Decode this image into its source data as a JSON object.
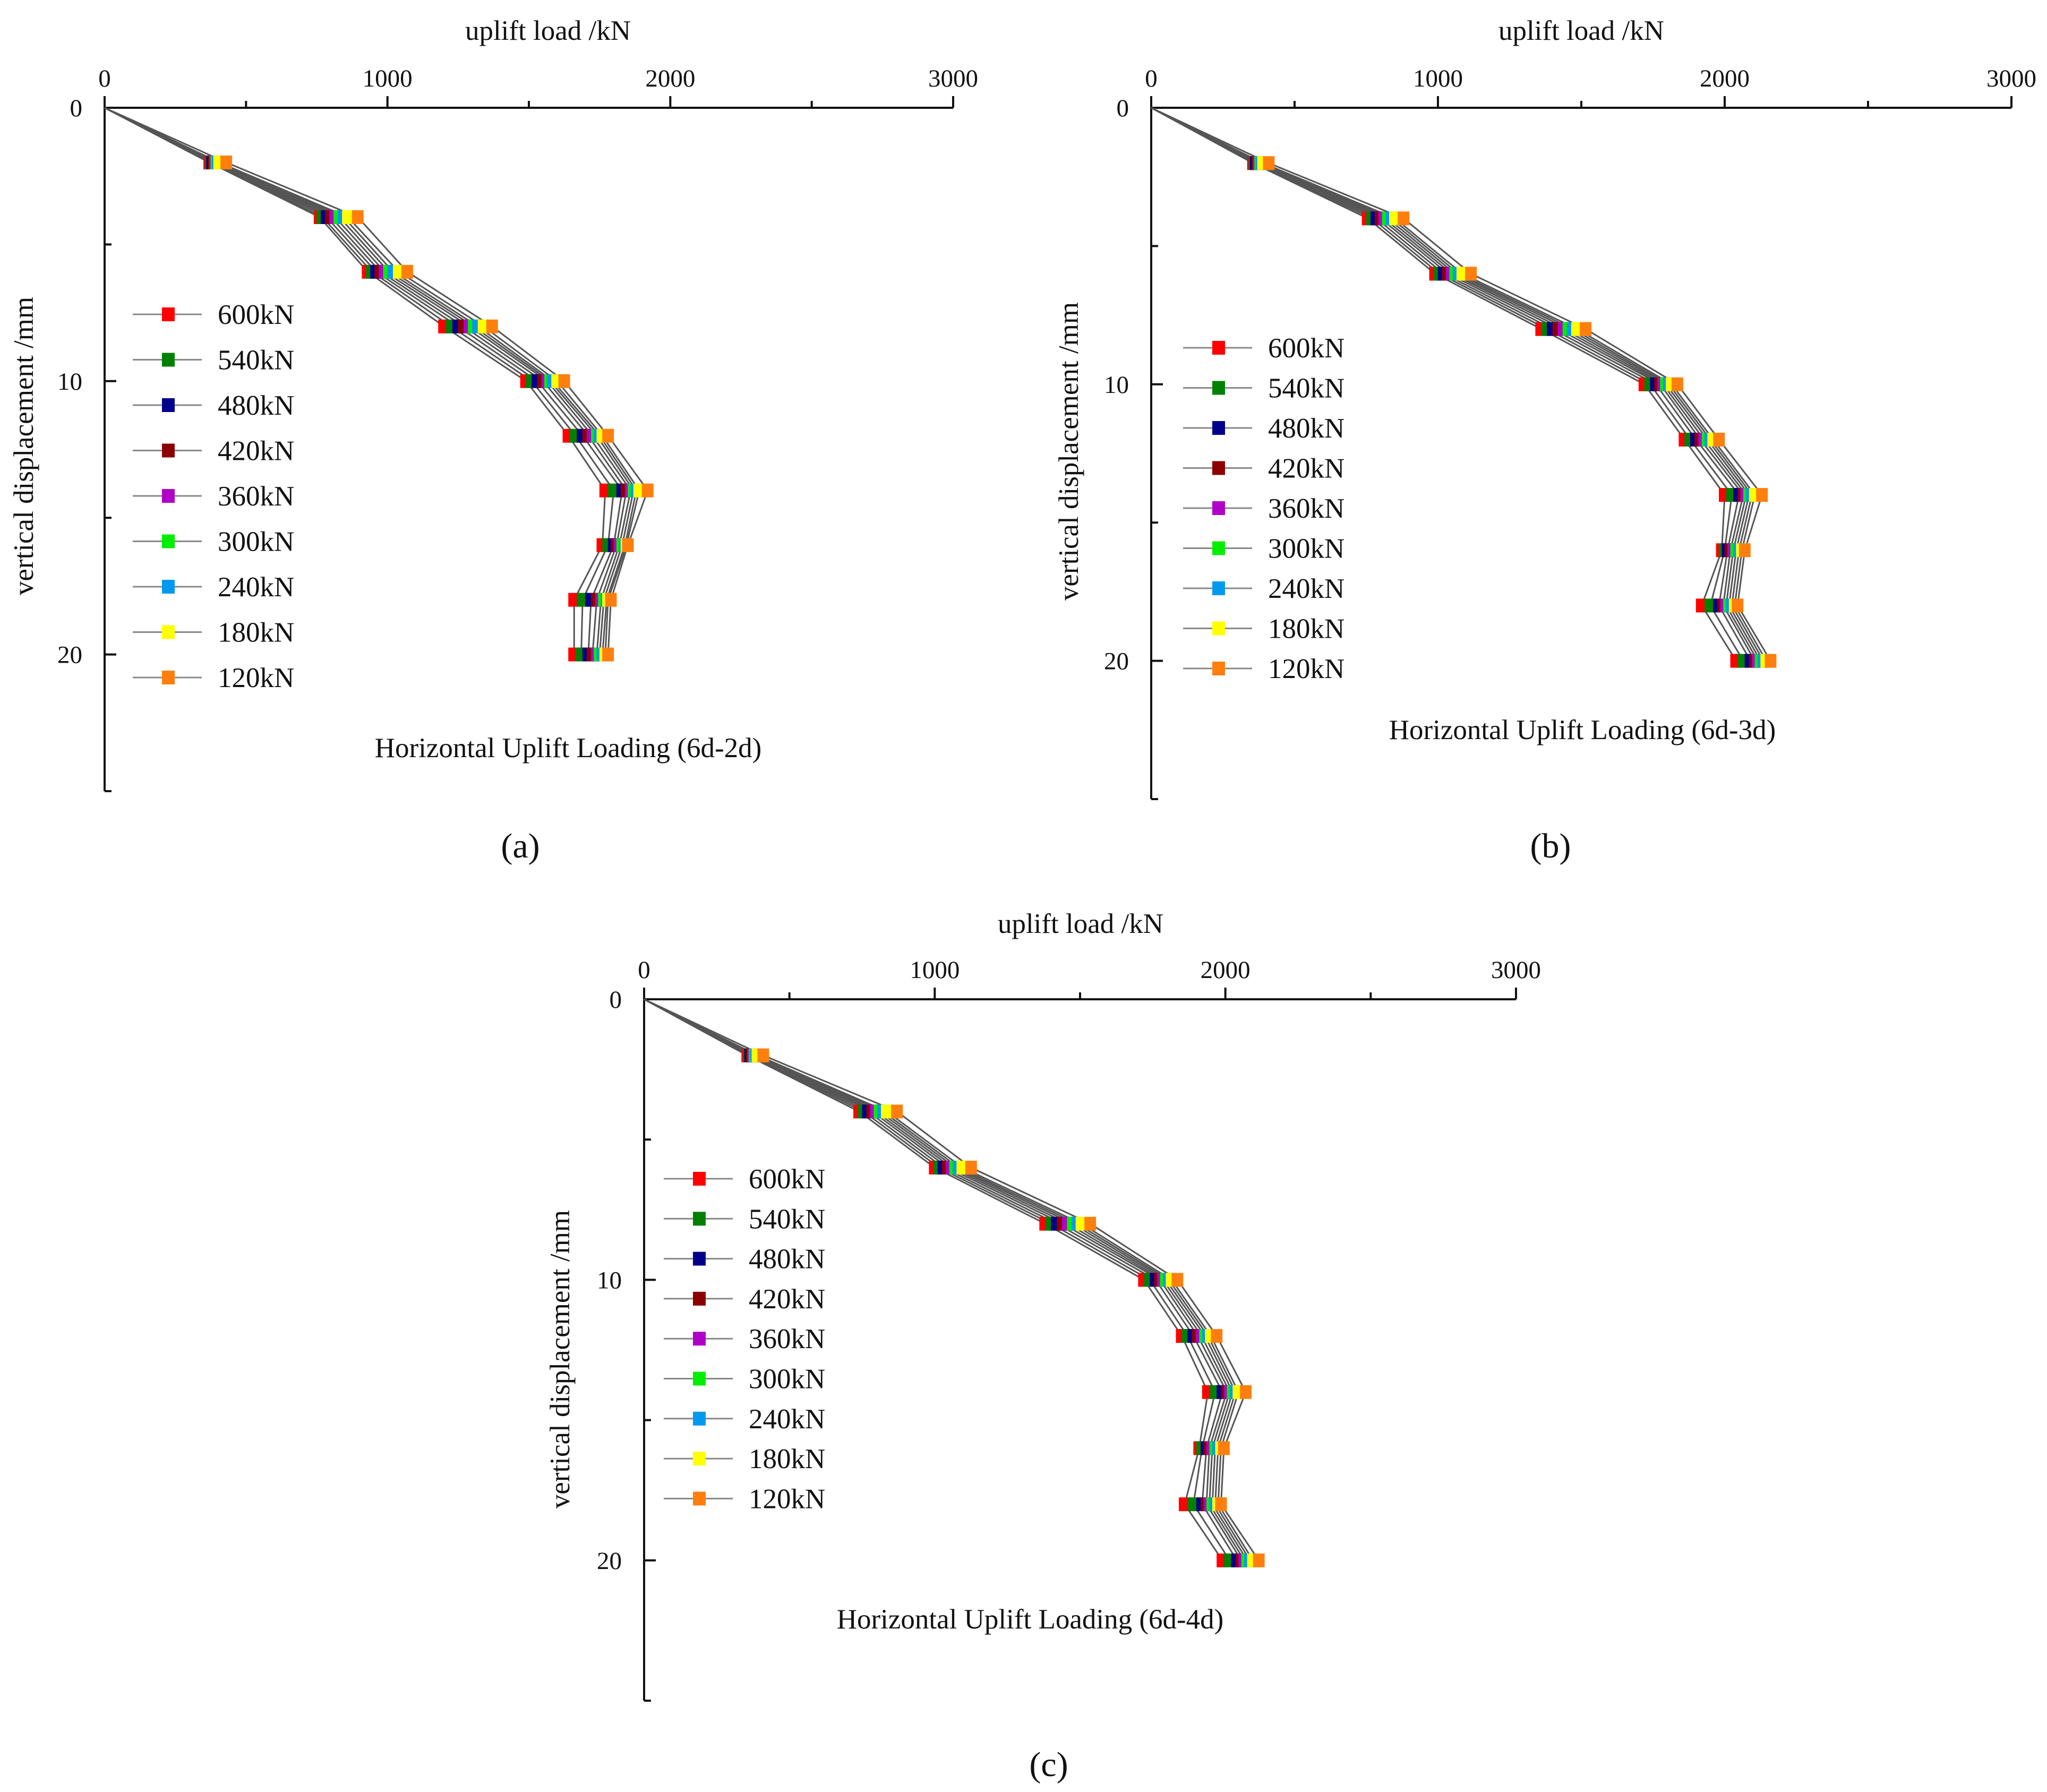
{
  "series_colors": {
    "600kN": "#ff0000",
    "540kN": "#008000",
    "480kN": "#00008b",
    "420kN": "#8b0000",
    "360kN": "#b000c8",
    "300kN": "#00ee00",
    "240kN": "#0099ee",
    "180kN": "#ffff00",
    "120kN": "#ff7f0e"
  },
  "chart_data": [
    {
      "type": "line",
      "title": "Horizontal Uplift Loading (6d-2d)",
      "panel_label": "(a)",
      "xlabel": "uplift load /kN",
      "ylabel": "vertical displacement /mm",
      "xlim": [
        0,
        3000
      ],
      "ylim": [
        0,
        25
      ],
      "x_ticks": [
        "0",
        "1000",
        "2000",
        "3000"
      ],
      "y_ticks": [
        "0",
        "10",
        "20"
      ],
      "legend": [
        "600kN",
        "540kN",
        "480kN",
        "420kN",
        "360kN",
        "300kN",
        "240kN",
        "180kN",
        "120kN"
      ],
      "grid": false,
      "y": [
        0,
        2,
        4,
        6,
        8,
        10,
        12,
        14,
        16,
        18,
        20
      ],
      "series": [
        {
          "name": "600kN",
          "values": [
            0,
            370,
            760,
            930,
            1200,
            1490,
            1640,
            1770,
            1760,
            1660,
            1660
          ]
        },
        {
          "name": "540kN",
          "values": [
            0,
            375,
            770,
            945,
            1225,
            1510,
            1665,
            1800,
            1780,
            1690,
            1685
          ]
        },
        {
          "name": "480kN",
          "values": [
            0,
            380,
            785,
            960,
            1250,
            1530,
            1690,
            1830,
            1800,
            1720,
            1710
          ]
        },
        {
          "name": "420kN",
          "values": [
            0,
            385,
            800,
            975,
            1270,
            1550,
            1710,
            1845,
            1810,
            1740,
            1725
          ]
        },
        {
          "name": "360kN",
          "values": [
            0,
            390,
            815,
            990,
            1290,
            1565,
            1725,
            1860,
            1820,
            1755,
            1740
          ]
        },
        {
          "name": "300kN",
          "values": [
            0,
            395,
            830,
            1005,
            1305,
            1575,
            1740,
            1870,
            1830,
            1765,
            1750
          ]
        },
        {
          "name": "240kN",
          "values": [
            0,
            400,
            845,
            1020,
            1320,
            1585,
            1750,
            1880,
            1840,
            1775,
            1760
          ]
        },
        {
          "name": "180kN",
          "values": [
            0,
            405,
            860,
            1040,
            1340,
            1600,
            1760,
            1890,
            1845,
            1780,
            1770
          ]
        },
        {
          "name": "120kN",
          "values": [
            0,
            430,
            895,
            1070,
            1370,
            1625,
            1780,
            1920,
            1850,
            1790,
            1780
          ]
        }
      ]
    },
    {
      "type": "line",
      "title": "Horizontal Uplift Loading (6d-3d)",
      "panel_label": "(b)",
      "xlabel": "uplift load /kN",
      "ylabel": "vertical displacement /mm",
      "xlim": [
        0,
        3000
      ],
      "ylim": [
        0,
        25
      ],
      "x_ticks": [
        "0",
        "1000",
        "2000",
        "3000"
      ],
      "y_ticks": [
        "0",
        "10",
        "20"
      ],
      "legend": [
        "600kN",
        "540kN",
        "480kN",
        "420kN",
        "360kN",
        "300kN",
        "240kN",
        "180kN",
        "120kN"
      ],
      "grid": false,
      "y": [
        0,
        2,
        4,
        6,
        8,
        10,
        12,
        14,
        16,
        18,
        20
      ],
      "series": [
        {
          "name": "600kN",
          "values": [
            0,
            355,
            755,
            990,
            1360,
            1720,
            1860,
            2000,
            1990,
            1920,
            2040
          ]
        },
        {
          "name": "540kN",
          "values": [
            0,
            360,
            770,
            1005,
            1380,
            1740,
            1880,
            2025,
            2000,
            1950,
            2065
          ]
        },
        {
          "name": "480kN",
          "values": [
            0,
            365,
            785,
            1020,
            1400,
            1760,
            1900,
            2050,
            2010,
            1980,
            2090
          ]
        },
        {
          "name": "420kN",
          "values": [
            0,
            370,
            800,
            1035,
            1420,
            1775,
            1915,
            2065,
            2020,
            1995,
            2105
          ]
        },
        {
          "name": "360kN",
          "values": [
            0,
            375,
            812,
            1048,
            1438,
            1785,
            1928,
            2075,
            2030,
            2005,
            2115
          ]
        },
        {
          "name": "300kN",
          "values": [
            0,
            380,
            825,
            1060,
            1455,
            1795,
            1940,
            2085,
            2040,
            2015,
            2125
          ]
        },
        {
          "name": "240kN",
          "values": [
            0,
            385,
            838,
            1072,
            1470,
            1805,
            1950,
            2095,
            2050,
            2025,
            2135
          ]
        },
        {
          "name": "180kN",
          "values": [
            0,
            390,
            850,
            1085,
            1485,
            1815,
            1960,
            2105,
            2060,
            2035,
            2145
          ]
        },
        {
          "name": "120kN",
          "values": [
            0,
            410,
            880,
            1115,
            1515,
            1835,
            1980,
            2130,
            2070,
            2045,
            2160
          ]
        }
      ]
    },
    {
      "type": "line",
      "title": "Horizontal Uplift Loading (6d-4d)",
      "panel_label": "(c)",
      "xlabel": "uplift load /kN",
      "ylabel": "vertical displacement /mm",
      "xlim": [
        0,
        3000
      ],
      "ylim": [
        0,
        25
      ],
      "x_ticks": [
        "0",
        "1000",
        "2000",
        "3000"
      ],
      "y_ticks": [
        "0",
        "10",
        "20"
      ],
      "legend": [
        "600kN",
        "540kN",
        "480kN",
        "420kN",
        "360kN",
        "300kN",
        "240kN",
        "180kN",
        "120kN"
      ],
      "grid": false,
      "y": [
        0,
        2,
        4,
        6,
        8,
        10,
        12,
        14,
        16,
        18,
        20
      ],
      "series": [
        {
          "name": "600kN",
          "values": [
            0,
            355,
            740,
            1000,
            1380,
            1720,
            1850,
            1940,
            1910,
            1860,
            1990
          ]
        },
        {
          "name": "540kN",
          "values": [
            0,
            360,
            755,
            1015,
            1400,
            1740,
            1870,
            1965,
            1920,
            1890,
            2015
          ]
        },
        {
          "name": "480kN",
          "values": [
            0,
            365,
            770,
            1030,
            1420,
            1760,
            1890,
            1990,
            1935,
            1920,
            2040
          ]
        },
        {
          "name": "420kN",
          "values": [
            0,
            370,
            785,
            1045,
            1440,
            1775,
            1905,
            2005,
            1945,
            1935,
            2055
          ]
        },
        {
          "name": "360kN",
          "values": [
            0,
            375,
            797,
            1058,
            1458,
            1785,
            1918,
            2015,
            1955,
            1945,
            2065
          ]
        },
        {
          "name": "300kN",
          "values": [
            0,
            380,
            810,
            1070,
            1475,
            1795,
            1930,
            2025,
            1965,
            1955,
            2075
          ]
        },
        {
          "name": "240kN",
          "values": [
            0,
            385,
            822,
            1082,
            1490,
            1805,
            1940,
            2035,
            1975,
            1965,
            2085
          ]
        },
        {
          "name": "180kN",
          "values": [
            0,
            390,
            835,
            1095,
            1505,
            1815,
            1950,
            2045,
            1985,
            1975,
            2095
          ]
        },
        {
          "name": "120kN",
          "values": [
            0,
            410,
            870,
            1125,
            1535,
            1835,
            1970,
            2070,
            1995,
            1985,
            2115
          ]
        }
      ]
    }
  ]
}
